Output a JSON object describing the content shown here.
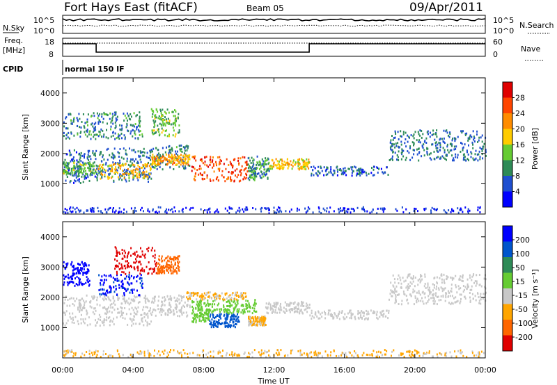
{
  "header": {
    "title": "Fort Hays East (fitACF)",
    "beam": "Beam 05",
    "date": "09/Apr/2011"
  },
  "noise_panel": {
    "left_label": "N.Sky",
    "left_ticks": [
      "10^5",
      "10^0"
    ],
    "right_ticks": [
      "10^5",
      "10^0"
    ],
    "right_label": "N.Search"
  },
  "freq_panel": {
    "left_label_line1": "Freq.",
    "left_label_line2": "[MHz]",
    "left_ticks": [
      "18",
      "8"
    ],
    "right_ticks": [
      "60",
      "0"
    ],
    "right_label": "Nave"
  },
  "cpid_panel": {
    "label": "CPID",
    "value": "normal 150 IF"
  },
  "colors": {
    "power": [
      "#0000ff",
      "#1f4fd0",
      "#2e8b57",
      "#66cc33",
      "#ffcc00",
      "#ff8c00",
      "#ff4500",
      "#e00000"
    ],
    "velocity": [
      "#0000ff",
      "#0055cc",
      "#2e8b57",
      "#66cc33",
      "#c8c8c8",
      "#ffa500",
      "#ff6600",
      "#e00000"
    ],
    "ground_scatter": "#c8c8c8"
  },
  "chart_data": [
    {
      "type": "heatmap",
      "name": "power",
      "ylabel": "Slant Range [km]",
      "yticks": [
        "4000",
        "3000",
        "2000",
        "1000"
      ],
      "ylim": [
        0,
        4500
      ],
      "xlim": [
        0,
        24
      ],
      "colorbar": {
        "label": "Power [dB]",
        "ticks": [
          "28",
          "24",
          "20",
          "16",
          "12",
          "8",
          "4"
        ],
        "range": [
          0,
          32
        ]
      },
      "regions": [
        {
          "t": [
            0.0,
            1.9
          ],
          "r": [
            1050,
            2150
          ],
          "v": 7
        },
        {
          "t": [
            0.0,
            1.9
          ],
          "r": [
            1350,
            1750
          ],
          "v": 13
        },
        {
          "t": [
            1.9,
            5.0
          ],
          "r": [
            1100,
            2200
          ],
          "v": 8
        },
        {
          "t": [
            2.0,
            5.0
          ],
          "r": [
            1200,
            1700
          ],
          "v": 19
        },
        {
          "t": [
            5.0,
            7.2
          ],
          "r": [
            1500,
            2300
          ],
          "v": 9
        },
        {
          "t": [
            5.0,
            7.2
          ],
          "r": [
            1650,
            2000
          ],
          "v": 21
        },
        {
          "t": [
            7.3,
            10.5
          ],
          "r": [
            1100,
            1950
          ],
          "v": 26
        },
        {
          "t": [
            10.5,
            11.7
          ],
          "r": [
            1150,
            1950
          ],
          "v": 10
        },
        {
          "t": [
            11.7,
            14.0
          ],
          "r": [
            1500,
            1850
          ],
          "v": 18
        },
        {
          "t": [
            14.0,
            18.5
          ],
          "r": [
            1300,
            1600
          ],
          "v": 7
        },
        {
          "t": [
            18.5,
            24.0
          ],
          "r": [
            1800,
            2800
          ],
          "v": 8
        },
        {
          "t": [
            0.0,
            4.5
          ],
          "r": [
            2500,
            3400
          ],
          "v": 9
        },
        {
          "t": [
            5.0,
            6.6
          ],
          "r": [
            2600,
            3500
          ],
          "v": 13
        },
        {
          "t": [
            0.0,
            24.0
          ],
          "r": [
            60,
            260
          ],
          "v": 4
        }
      ]
    },
    {
      "type": "heatmap",
      "name": "velocity",
      "ylabel": "Slant Range [km]",
      "yticks": [
        "4000",
        "3000",
        "2000",
        "1000"
      ],
      "ylim": [
        0,
        4500
      ],
      "xlim": [
        0,
        24
      ],
      "xticks": [
        "00:00",
        "04:00",
        "08:00",
        "12:00",
        "16:00",
        "20:00",
        "00:00"
      ],
      "xlabel": "Time UT",
      "colorbar": {
        "label": "Velocity [m s⁻¹]",
        "ticks": [
          "200",
          "100",
          "50",
          "15",
          "-15",
          "-50",
          "-100",
          "-200"
        ],
        "range": [
          -250,
          250
        ]
      },
      "regions": [
        {
          "t": [
            0.0,
            5.0
          ],
          "r": [
            1100,
            2100
          ],
          "v": 0,
          "ground": true
        },
        {
          "t": [
            5.0,
            7.2
          ],
          "r": [
            1400,
            2100
          ],
          "v": 0,
          "ground": true
        },
        {
          "t": [
            7.3,
            8.3
          ],
          "r": [
            1200,
            1950
          ],
          "v": 30
        },
        {
          "t": [
            8.3,
            10.0
          ],
          "r": [
            1050,
            1500
          ],
          "v": 150
        },
        {
          "t": [
            8.3,
            11.0
          ],
          "r": [
            1500,
            1950
          ],
          "v": 40
        },
        {
          "t": [
            10.5,
            11.5
          ],
          "r": [
            1100,
            1400
          ],
          "v": -70
        },
        {
          "t": [
            7.0,
            10.5
          ],
          "r": [
            1950,
            2200
          ],
          "v": -70
        },
        {
          "t": [
            11.5,
            14.0
          ],
          "r": [
            1500,
            1900
          ],
          "v": 0,
          "ground": true
        },
        {
          "t": [
            14.0,
            18.5
          ],
          "r": [
            1300,
            1600
          ],
          "v": 0,
          "ground": true
        },
        {
          "t": [
            18.5,
            24.0
          ],
          "r": [
            1800,
            2800
          ],
          "v": 0,
          "ground": true
        },
        {
          "t": [
            0.0,
            1.5
          ],
          "r": [
            2400,
            3200
          ],
          "v": 220
        },
        {
          "t": [
            2.0,
            4.5
          ],
          "r": [
            2100,
            2800
          ],
          "v": 200
        },
        {
          "t": [
            2.9,
            5.3
          ],
          "r": [
            2800,
            3700
          ],
          "v": -220
        },
        {
          "t": [
            5.3,
            6.6
          ],
          "r": [
            2800,
            3400
          ],
          "v": -150
        },
        {
          "t": [
            0.0,
            24.0
          ],
          "r": [
            60,
            300
          ],
          "v": -70
        }
      ]
    }
  ]
}
